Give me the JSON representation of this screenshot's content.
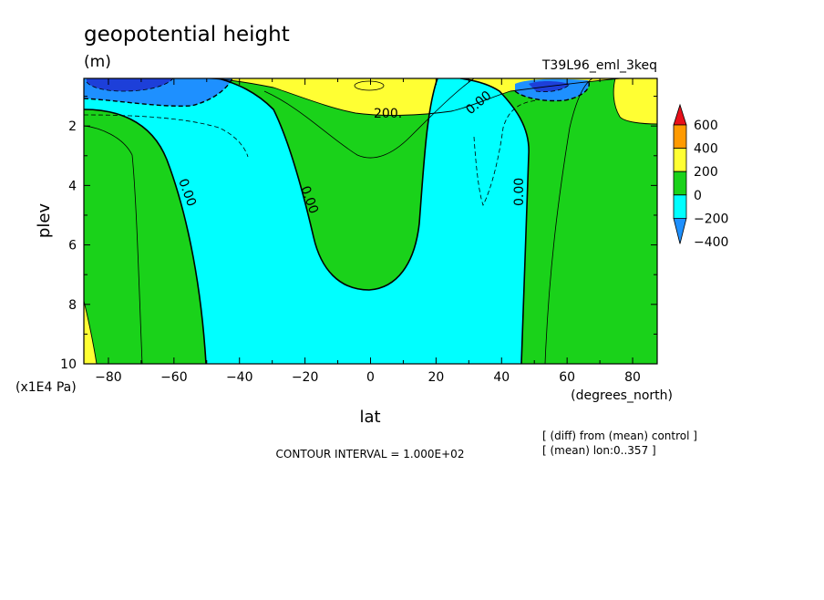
{
  "chart_data": {
    "type": "contour",
    "title": "geopotential height",
    "units": "(m)",
    "run_label": "T39L96_eml_3keq",
    "xlabel": "lat",
    "xunits": "(degrees_north)",
    "ylabel": "plev",
    "yunits": "(x1E4 Pa)",
    "x_ticks": [
      "-80",
      "-60",
      "-40",
      "-20",
      "0",
      "20",
      "40",
      "60",
      "80"
    ],
    "y_ticks": [
      "2",
      "4",
      "6",
      "8",
      "10"
    ],
    "xlim": [
      -87.5,
      87.5
    ],
    "ylim": [
      10,
      0.4
    ],
    "contour_interval_text": "CONTOUR INTERVAL = 1.000E+02",
    "notes": [
      "[ (diff) from (mean) control ]",
      "[ (mean) lon:0..357 ]"
    ],
    "contour_labels": [
      "0.00",
      "0.00",
      "200.",
      "0.00",
      "0.00"
    ],
    "colorbar": {
      "levels": [
        "600",
        "400",
        "200",
        "0",
        "-200",
        "-400"
      ],
      "colors": [
        "#e8101a",
        "#ff9a00",
        "#ffff33",
        "#1ad21a",
        "#00ffff",
        "#1e90ff"
      ]
    }
  }
}
